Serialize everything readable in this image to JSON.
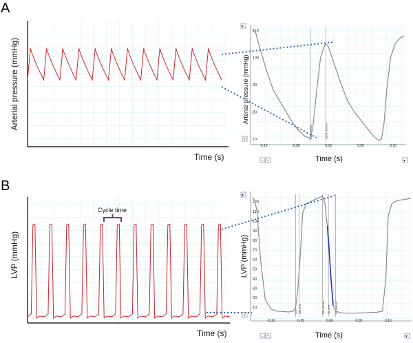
{
  "panels": [
    {
      "letter": "A"
    },
    {
      "letter": "B"
    }
  ],
  "annotation": {
    "cycle_time": "Cycle time"
  },
  "colors": {
    "trace_red": "#d0202a",
    "trace_gray": "#8a8a8a",
    "trace_blue": "#1f2fd0",
    "grid": "#bfeef6",
    "connector": "#3464b4",
    "bracket": "#6a3c8c"
  },
  "controls": {
    "top_left_glyph": "▾",
    "zoom_glyph": "+",
    "zoom_out_glyph": "−"
  },
  "chart_data": [
    {
      "type": "line",
      "ylabel": "Arterial pressure (mmHg)",
      "xlabel": "Time (s)",
      "series": [
        {
          "beats": 12,
          "peak_relative": 0.78,
          "trough_relative": 0.53
        }
      ]
    },
    {
      "type": "line",
      "ylabel": "Arterial pressure (mmHg)",
      "xlabel": "Time (s)",
      "x_ticks": [
        "-0,10",
        "-0,05",
        "0,00",
        "0,05",
        "0,10"
      ],
      "y_ticks": [
        "70",
        "80",
        "90",
        "100",
        "110"
      ],
      "xlim": [
        -0.12,
        0.12
      ],
      "ylim": [
        69,
        111
      ],
      "markers": [
        {
          "label": "Diast. pressure",
          "x": -0.028
        },
        {
          "label": "Systolic pressure",
          "x": -0.004
        }
      ],
      "series": [
        {
          "x": [
            -0.117,
            -0.112,
            -0.105,
            -0.095,
            -0.085,
            -0.075,
            -0.065,
            -0.055,
            -0.045,
            -0.036,
            -0.03,
            -0.028,
            -0.024,
            -0.018,
            -0.012,
            -0.006,
            -0.004,
            0.0,
            0.01,
            0.02,
            0.03,
            0.04,
            0.05,
            0.06,
            0.07,
            0.078,
            0.082,
            0.086,
            0.09,
            0.096,
            0.103,
            0.11,
            0.117
          ],
          "y": [
            110,
            109,
            103,
            95,
            88,
            84,
            80,
            76,
            73,
            71,
            70.5,
            70,
            74,
            88,
            100,
            104.5,
            105,
            104,
            97,
            90,
            84,
            80,
            77,
            74,
            71,
            69.5,
            70,
            76,
            88,
            100,
            105,
            107,
            108
          ]
        }
      ]
    },
    {
      "type": "line",
      "ylabel": "LVP (mmHg)",
      "xlabel": "Time (s)",
      "series": [
        {
          "beats": 12,
          "peak_relative": 0.78,
          "base_relative": 0.05
        }
      ]
    },
    {
      "type": "line",
      "ylabel": "LVP (mmHg)",
      "xlabel": "Time (s)",
      "x_ticks": [
        "-0,10",
        "-0,05",
        "0,00",
        "0,05",
        "0,10"
      ],
      "y_ticks": [
        "10",
        "20",
        "30",
        "40",
        "50",
        "60",
        "70",
        "80",
        "90",
        "100",
        "110",
        "120"
      ],
      "xlim": [
        -0.135,
        0.14
      ],
      "ylim": [
        0,
        128
      ],
      "markers": [
        {
          "label": "EDP",
          "x": -0.058
        },
        {
          "label": "Max dP/dt",
          "x": -0.052
        },
        {
          "label": "Max pressure",
          "x": -0.012
        },
        {
          "label": "Min dP/dt",
          "x": -0.002
        },
        {
          "label": "Min pressure",
          "x": 0.01
        }
      ],
      "series": [
        {
          "x": [
            -0.132,
            -0.128,
            -0.124,
            -0.118,
            -0.11,
            -0.1,
            -0.09,
            -0.08,
            -0.07,
            -0.062,
            -0.058,
            -0.054,
            -0.05,
            -0.046,
            -0.04,
            -0.03,
            -0.02,
            -0.012,
            -0.008,
            -0.004,
            -0.001,
            0.002,
            0.006,
            0.01,
            0.02,
            0.03,
            0.04,
            0.05,
            0.06,
            0.07,
            0.08,
            0.09,
            0.096,
            0.1,
            0.106,
            0.114,
            0.122,
            0.132,
            0.138
          ],
          "y": [
            124,
            122,
            110,
            60,
            18,
            8,
            6,
            5.5,
            5,
            6,
            10,
            30,
            65,
            108,
            118,
            121,
            124,
            126,
            118,
            95,
            72,
            42,
            12,
            6,
            4,
            3.8,
            3.8,
            4,
            4.2,
            4.4,
            4.6,
            6,
            40,
            105,
            118,
            121,
            122,
            123,
            124
          ]
        }
      ],
      "highlight": {
        "x_from": -0.004,
        "x_to": 0.004
      }
    }
  ]
}
